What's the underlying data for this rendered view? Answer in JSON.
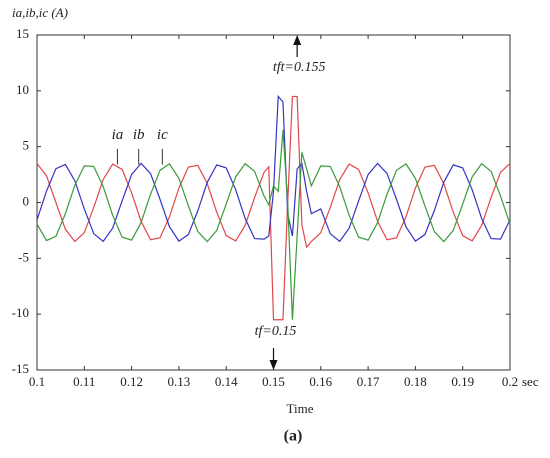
{
  "chart_data": {
    "type": "line",
    "y_label": "ia,ib,ic (A)",
    "x_label": "Time",
    "x_unit": "sec",
    "caption": "(a)",
    "xlim": [
      0.1,
      0.2
    ],
    "ylim": [
      -15,
      15
    ],
    "xticks": [
      0.1,
      0.11,
      0.12,
      0.13,
      0.14,
      0.15,
      0.16,
      0.17,
      0.18,
      0.19,
      0.2
    ],
    "yticks": [
      -15,
      -10,
      -5,
      0,
      5,
      10,
      15
    ],
    "grid": false,
    "annotations": [
      {
        "text": "tft=0.155",
        "x": 0.155,
        "direction": "up"
      },
      {
        "text": "tf=0.15",
        "x": 0.15,
        "direction": "down"
      }
    ],
    "x": [
      0.1,
      0.102,
      0.104,
      0.106,
      0.108,
      0.11,
      0.112,
      0.114,
      0.116,
      0.118,
      0.12,
      0.122,
      0.124,
      0.126,
      0.128,
      0.13,
      0.132,
      0.134,
      0.136,
      0.138,
      0.14,
      0.142,
      0.144,
      0.146,
      0.148,
      0.149,
      0.15,
      0.151,
      0.152,
      0.153,
      0.154,
      0.155,
      0.156,
      0.157,
      0.158,
      0.16,
      0.162,
      0.164,
      0.166,
      0.168,
      0.17,
      0.172,
      0.174,
      0.176,
      0.178,
      0.18,
      0.182,
      0.184,
      0.186,
      0.188,
      0.19,
      0.192,
      0.194,
      0.196,
      0.198,
      0.2
    ],
    "series": [
      {
        "name": "ia",
        "color": "#e0474c",
        "values": [
          3.49,
          2.4,
          0,
          -2.4,
          -3.49,
          -2.7,
          -0.44,
          2.06,
          3.44,
          2.96,
          0.87,
          -1.69,
          -3.33,
          -3.17,
          -1.29,
          1.29,
          3.17,
          3.33,
          1.69,
          -0.87,
          -2.96,
          -3.44,
          -2.06,
          0.44,
          2.7,
          3.2,
          -10.5,
          -10.5,
          -10.5,
          0,
          9.5,
          9.5,
          -2,
          -4,
          -3.5,
          -2.7,
          -0.44,
          2.06,
          3.44,
          2.96,
          0.87,
          -1.69,
          -3.33,
          -3.17,
          -1.29,
          1.29,
          3.17,
          3.33,
          1.69,
          -0.87,
          -2.96,
          -3.44,
          -2.06,
          0.44,
          2.7,
          3.49
        ]
      },
      {
        "name": "ib",
        "color": "#3434c4",
        "values": [
          -1.56,
          1.01,
          3.03,
          3.41,
          1.94,
          -0.58,
          -2.79,
          -3.48,
          -2.29,
          0.15,
          2.5,
          3.5,
          2.6,
          0.29,
          -2.17,
          -3.46,
          -2.87,
          -0.73,
          1.81,
          3.37,
          3.1,
          1.15,
          -1.42,
          -3.23,
          -3.28,
          -3,
          1,
          9.5,
          9,
          -1,
          -3,
          3,
          3.5,
          1,
          -1,
          -0.58,
          -2.79,
          -3.48,
          -2.29,
          0.15,
          2.5,
          3.5,
          2.6,
          0.29,
          -2.17,
          -3.46,
          -2.87,
          -0.73,
          1.81,
          3.37,
          3.1,
          1.15,
          -1.42,
          -3.23,
          -3.28,
          -1.56
        ]
      },
      {
        "name": "ic",
        "color": "#3a9a3a",
        "values": [
          -1.93,
          -3.41,
          -3.03,
          -1.01,
          1.55,
          3.28,
          3.23,
          1.42,
          -1.15,
          -3.11,
          -3.37,
          -1.81,
          0.73,
          2.88,
          3.46,
          2.17,
          -0.3,
          -2.6,
          -3.5,
          -2.5,
          -0.14,
          2.29,
          3.48,
          2.79,
          0.58,
          -0.2,
          1.5,
          1,
          6.5,
          0,
          -10.5,
          -3,
          4.5,
          3,
          1.5,
          3.28,
          3.23,
          1.42,
          -1.15,
          -3.11,
          -3.37,
          -1.81,
          0.73,
          2.88,
          3.46,
          2.17,
          -0.3,
          -2.6,
          -3.5,
          -2.5,
          -0.14,
          2.29,
          3.48,
          2.79,
          0.58,
          -1.93
        ]
      }
    ]
  }
}
